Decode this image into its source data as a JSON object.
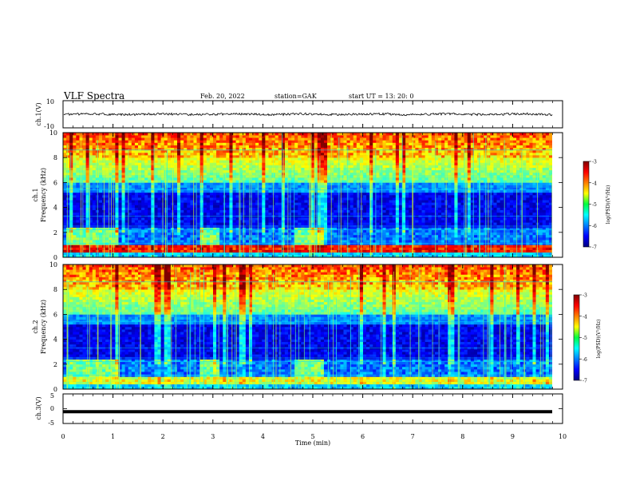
{
  "header": {
    "title": "VLF Spectra",
    "date": "Feb. 20, 2022",
    "station": "station=GAK",
    "start": "start  UT  =    13: 20: 0"
  },
  "chart_data": [
    {
      "type": "line",
      "panel": "ch1-waveform",
      "ylabel": "ch.1(V)",
      "yticks": [
        "10",
        "-10"
      ],
      "ylim": [
        -10,
        10
      ],
      "xlim": [
        0,
        10
      ],
      "description_level": "noisy waveform near 0 V, amplitude about ±1 V"
    },
    {
      "type": "heatmap",
      "panel": "ch1-spectrogram",
      "ylabel": "ch.1 Frequency (kHz)",
      "ylabel_lines": [
        "ch.1",
        "Frequency (kHz)"
      ],
      "yticks": [
        "0",
        "2",
        "4",
        "6",
        "8",
        "10"
      ],
      "ylim": [
        0,
        10
      ],
      "xlim": [
        0,
        9.83
      ],
      "colorbar": {
        "label": "log(PSD)(V²/Hz)",
        "ticks": [
          "-3",
          "-4",
          "-5",
          "-6",
          "-7"
        ],
        "range": [
          -7,
          -3
        ]
      }
    },
    {
      "type": "heatmap",
      "panel": "ch2-spectrogram",
      "ylabel": "ch.2 Frequency (kHz)",
      "ylabel_lines": [
        "ch.2",
        "Frequency (kHz)"
      ],
      "yticks": [
        "0",
        "2",
        "4",
        "6",
        "8",
        "10"
      ],
      "ylim": [
        0,
        10
      ],
      "xlim": [
        0,
        9.83
      ],
      "colorbar": {
        "label": "log(PSD)(V²/Hz)",
        "ticks": [
          "-3",
          "-4",
          "-5",
          "-6",
          "-7"
        ],
        "range": [
          -7,
          -3
        ]
      }
    },
    {
      "type": "line",
      "panel": "ch3-waveform",
      "ylabel": "ch.3(V)",
      "yticks": [
        "5",
        "0",
        "-5"
      ],
      "ylim": [
        -5,
        5
      ],
      "xlim": [
        0,
        10
      ],
      "level": -1,
      "xlabel": "Time  (min)",
      "xticks": [
        "0",
        "1",
        "2",
        "3",
        "4",
        "5",
        "6",
        "7",
        "8",
        "9",
        "10"
      ]
    }
  ]
}
